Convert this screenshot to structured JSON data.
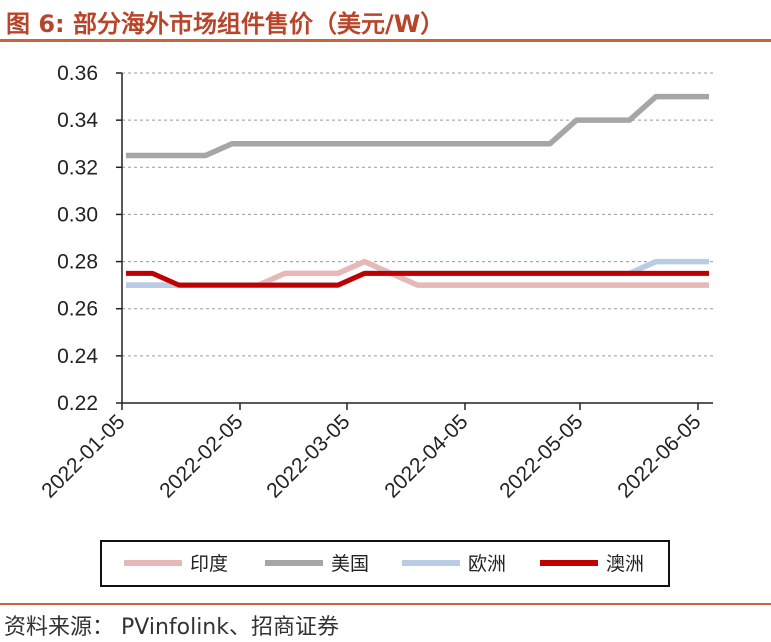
{
  "header": {
    "title": "图 6:  部分海外市场组件售价（美元/W）"
  },
  "footer": {
    "source": "资料来源：  PVinfolink、招商证券"
  },
  "chart_data": {
    "type": "line",
    "title": "部分海外市场组件售价（美元/W）",
    "xlabel": "",
    "ylabel": "",
    "ylim": [
      0.22,
      0.36
    ],
    "yticks": [
      "0.22",
      "0.24",
      "0.26",
      "0.28",
      "0.30",
      "0.32",
      "0.34",
      "0.36"
    ],
    "xticks": [
      "2022-01-05",
      "2022-02-05",
      "2022-03-05",
      "2022-04-05",
      "2022-05-05",
      "2022-06-05"
    ],
    "grid": "horizontal dashed",
    "legend_position": "bottom",
    "x": [
      "2022-01-05",
      "2022-01-12",
      "2022-01-19",
      "2022-01-26",
      "2022-02-02",
      "2022-02-09",
      "2022-02-16",
      "2022-02-23",
      "2022-03-02",
      "2022-03-09",
      "2022-03-16",
      "2022-03-23",
      "2022-03-30",
      "2022-04-06",
      "2022-04-13",
      "2022-04-20",
      "2022-04-27",
      "2022-05-04",
      "2022-05-11",
      "2022-05-18",
      "2022-05-25",
      "2022-06-01",
      "2022-06-08"
    ],
    "series": [
      {
        "name": "印度",
        "color": "#e6b8b7",
        "values": [
          0.27,
          0.27,
          0.27,
          0.27,
          0.27,
          0.27,
          0.275,
          0.275,
          0.275,
          0.28,
          0.275,
          0.27,
          0.27,
          0.27,
          0.27,
          0.27,
          0.27,
          0.27,
          0.27,
          0.27,
          0.27,
          0.27,
          0.27
        ]
      },
      {
        "name": "美国",
        "color": "#a6a6a6",
        "values": [
          0.325,
          0.325,
          0.325,
          0.325,
          0.33,
          0.33,
          0.33,
          0.33,
          0.33,
          0.33,
          0.33,
          0.33,
          0.33,
          0.33,
          0.33,
          0.33,
          0.33,
          0.34,
          0.34,
          0.34,
          0.35,
          0.35,
          0.35
        ]
      },
      {
        "name": "欧洲",
        "color": "#b8cce4",
        "values": [
          0.27,
          0.27,
          0.27,
          0.27,
          0.27,
          0.27,
          0.27,
          0.27,
          0.27,
          0.275,
          0.275,
          0.275,
          0.275,
          0.275,
          0.275,
          0.275,
          0.275,
          0.275,
          0.275,
          0.275,
          0.28,
          0.28,
          0.28
        ]
      },
      {
        "name": "澳洲",
        "color": "#c00000",
        "values": [
          0.275,
          0.275,
          0.27,
          0.27,
          0.27,
          0.27,
          0.27,
          0.27,
          0.27,
          0.275,
          0.275,
          0.275,
          0.275,
          0.275,
          0.275,
          0.275,
          0.275,
          0.275,
          0.275,
          0.275,
          0.275,
          0.275,
          0.275
        ]
      }
    ]
  }
}
